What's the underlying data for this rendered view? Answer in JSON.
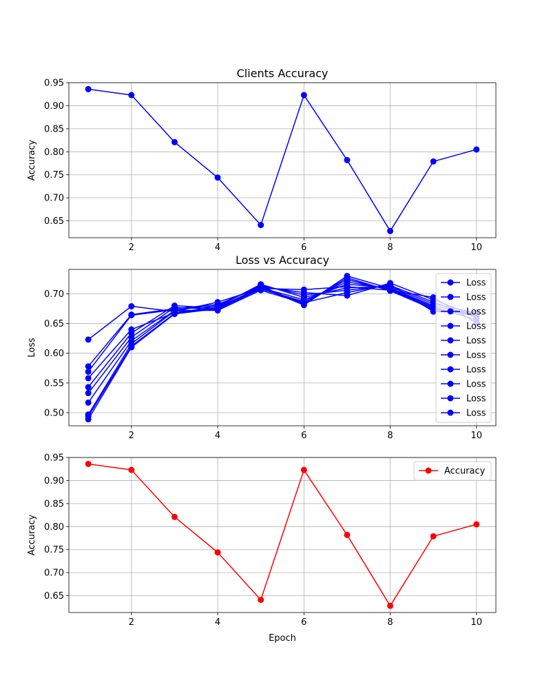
{
  "chart_data": [
    {
      "type": "line",
      "title": "Clients Accuracy",
      "xlabel": "",
      "ylabel": "Accuracy",
      "xlim": [
        0.55,
        10.45
      ],
      "ylim": [
        0.6135,
        0.95
      ],
      "xticks": [
        2,
        4,
        6,
        8,
        10
      ],
      "xtick_labels": [
        "2",
        "4",
        "6",
        "8",
        "10"
      ],
      "yticks": [
        0.65,
        0.7,
        0.75,
        0.8,
        0.85,
        0.9,
        0.95
      ],
      "ytick_labels": [
        "0.65",
        "0.70",
        "0.75",
        "0.80",
        "0.85",
        "0.90",
        "0.95"
      ],
      "grid": true,
      "legend": null,
      "series": [
        {
          "color": "#0000ff",
          "marker": "circle",
          "x": [
            1,
            2,
            3,
            4,
            5,
            6,
            7,
            8,
            9,
            10
          ],
          "y": [
            0.936,
            0.923,
            0.821,
            0.744,
            0.641,
            0.923,
            0.782,
            0.628,
            0.779,
            0.805
          ]
        }
      ]
    },
    {
      "type": "line",
      "title": "Loss vs Accuracy",
      "xlabel": "",
      "ylabel": "Loss",
      "xlim": [
        0.55,
        10.45
      ],
      "ylim": [
        0.478,
        0.741
      ],
      "xticks": [
        2,
        4,
        6,
        8,
        10
      ],
      "xtick_labels": [
        "2",
        "4",
        "6",
        "8",
        "10"
      ],
      "yticks": [
        0.5,
        0.55,
        0.6,
        0.65,
        0.7
      ],
      "ytick_labels": [
        "0.50",
        "0.55",
        "0.60",
        "0.65",
        "0.70"
      ],
      "grid": true,
      "legend": "top-right",
      "series": [
        {
          "name": "Loss",
          "color": "#0000ff",
          "marker": "circle",
          "x": [
            1,
            2,
            3,
            4,
            5,
            6,
            7,
            8,
            9,
            10
          ],
          "y": [
            0.623,
            0.679,
            0.67,
            0.686,
            0.709,
            0.707,
            0.712,
            0.706,
            0.694,
            0.651
          ]
        },
        {
          "name": "Loss",
          "color": "#0000ff",
          "marker": "circle",
          "x": [
            1,
            2,
            3,
            4,
            5,
            6,
            7,
            8,
            9,
            10
          ],
          "y": [
            0.578,
            0.665,
            0.675,
            0.682,
            0.712,
            0.702,
            0.697,
            0.718,
            0.69,
            0.663
          ]
        },
        {
          "name": "Loss",
          "color": "#0000ff",
          "marker": "circle",
          "x": [
            1,
            2,
            3,
            4,
            5,
            6,
            7,
            8,
            9,
            10
          ],
          "y": [
            0.569,
            0.664,
            0.673,
            0.68,
            0.714,
            0.698,
            0.706,
            0.714,
            0.686,
            0.66
          ]
        },
        {
          "name": "Loss",
          "color": "#0000ff",
          "marker": "circle",
          "x": [
            1,
            2,
            3,
            4,
            5,
            6,
            7,
            8,
            9,
            10
          ],
          "y": [
            0.558,
            0.64,
            0.668,
            0.678,
            0.716,
            0.694,
            0.71,
            0.712,
            0.683,
            0.668
          ]
        },
        {
          "name": "Loss",
          "color": "#0000ff",
          "marker": "circle",
          "x": [
            1,
            2,
            3,
            4,
            5,
            6,
            7,
            8,
            9,
            10
          ],
          "y": [
            0.543,
            0.634,
            0.68,
            0.676,
            0.71,
            0.69,
            0.716,
            0.71,
            0.68,
            0.665
          ]
        },
        {
          "name": "Loss",
          "color": "#0000ff",
          "marker": "circle",
          "x": [
            1,
            2,
            3,
            4,
            5,
            6,
            7,
            8,
            9,
            10
          ],
          "y": [
            0.533,
            0.627,
            0.677,
            0.674,
            0.708,
            0.687,
            0.72,
            0.708,
            0.678,
            0.656
          ]
        },
        {
          "name": "Loss",
          "color": "#0000ff",
          "marker": "circle",
          "x": [
            1,
            2,
            3,
            4,
            5,
            6,
            7,
            8,
            9,
            10
          ],
          "y": [
            0.517,
            0.621,
            0.672,
            0.672,
            0.706,
            0.684,
            0.724,
            0.706,
            0.676,
            0.662
          ]
        },
        {
          "name": "Loss",
          "color": "#0000ff",
          "marker": "circle",
          "x": [
            1,
            2,
            3,
            4,
            5,
            6,
            7,
            8,
            9,
            10
          ],
          "y": [
            0.497,
            0.616,
            0.671,
            0.673,
            0.713,
            0.682,
            0.727,
            0.705,
            0.674,
            0.664
          ]
        },
        {
          "name": "Loss",
          "color": "#0000ff",
          "marker": "circle",
          "x": [
            1,
            2,
            3,
            4,
            5,
            6,
            7,
            8,
            9,
            10
          ],
          "y": [
            0.494,
            0.612,
            0.667,
            0.677,
            0.711,
            0.681,
            0.73,
            0.709,
            0.672,
            0.667
          ]
        },
        {
          "name": "Loss",
          "color": "#0000ff",
          "marker": "circle",
          "x": [
            1,
            2,
            3,
            4,
            5,
            6,
            7,
            8,
            9,
            10
          ],
          "y": [
            0.489,
            0.61,
            0.666,
            0.675,
            0.709,
            0.685,
            0.702,
            0.716,
            0.67,
            0.669
          ]
        }
      ]
    },
    {
      "type": "line",
      "title": "",
      "xlabel": "Epoch",
      "ylabel": "Accuracy",
      "xlim": [
        0.55,
        10.45
      ],
      "ylim": [
        0.6135,
        0.95
      ],
      "xticks": [
        2,
        4,
        6,
        8,
        10
      ],
      "xtick_labels": [
        "2",
        "4",
        "6",
        "8",
        "10"
      ],
      "yticks": [
        0.65,
        0.7,
        0.75,
        0.8,
        0.85,
        0.9,
        0.95
      ],
      "ytick_labels": [
        "0.65",
        "0.70",
        "0.75",
        "0.80",
        "0.85",
        "0.90",
        "0.95"
      ],
      "grid": true,
      "legend": "top-right",
      "series": [
        {
          "name": "Accuracy",
          "color": "#ff0000",
          "marker": "circle",
          "x": [
            1,
            2,
            3,
            4,
            5,
            6,
            7,
            8,
            9,
            10
          ],
          "y": [
            0.936,
            0.923,
            0.821,
            0.744,
            0.641,
            0.923,
            0.782,
            0.628,
            0.779,
            0.805
          ]
        }
      ]
    }
  ]
}
